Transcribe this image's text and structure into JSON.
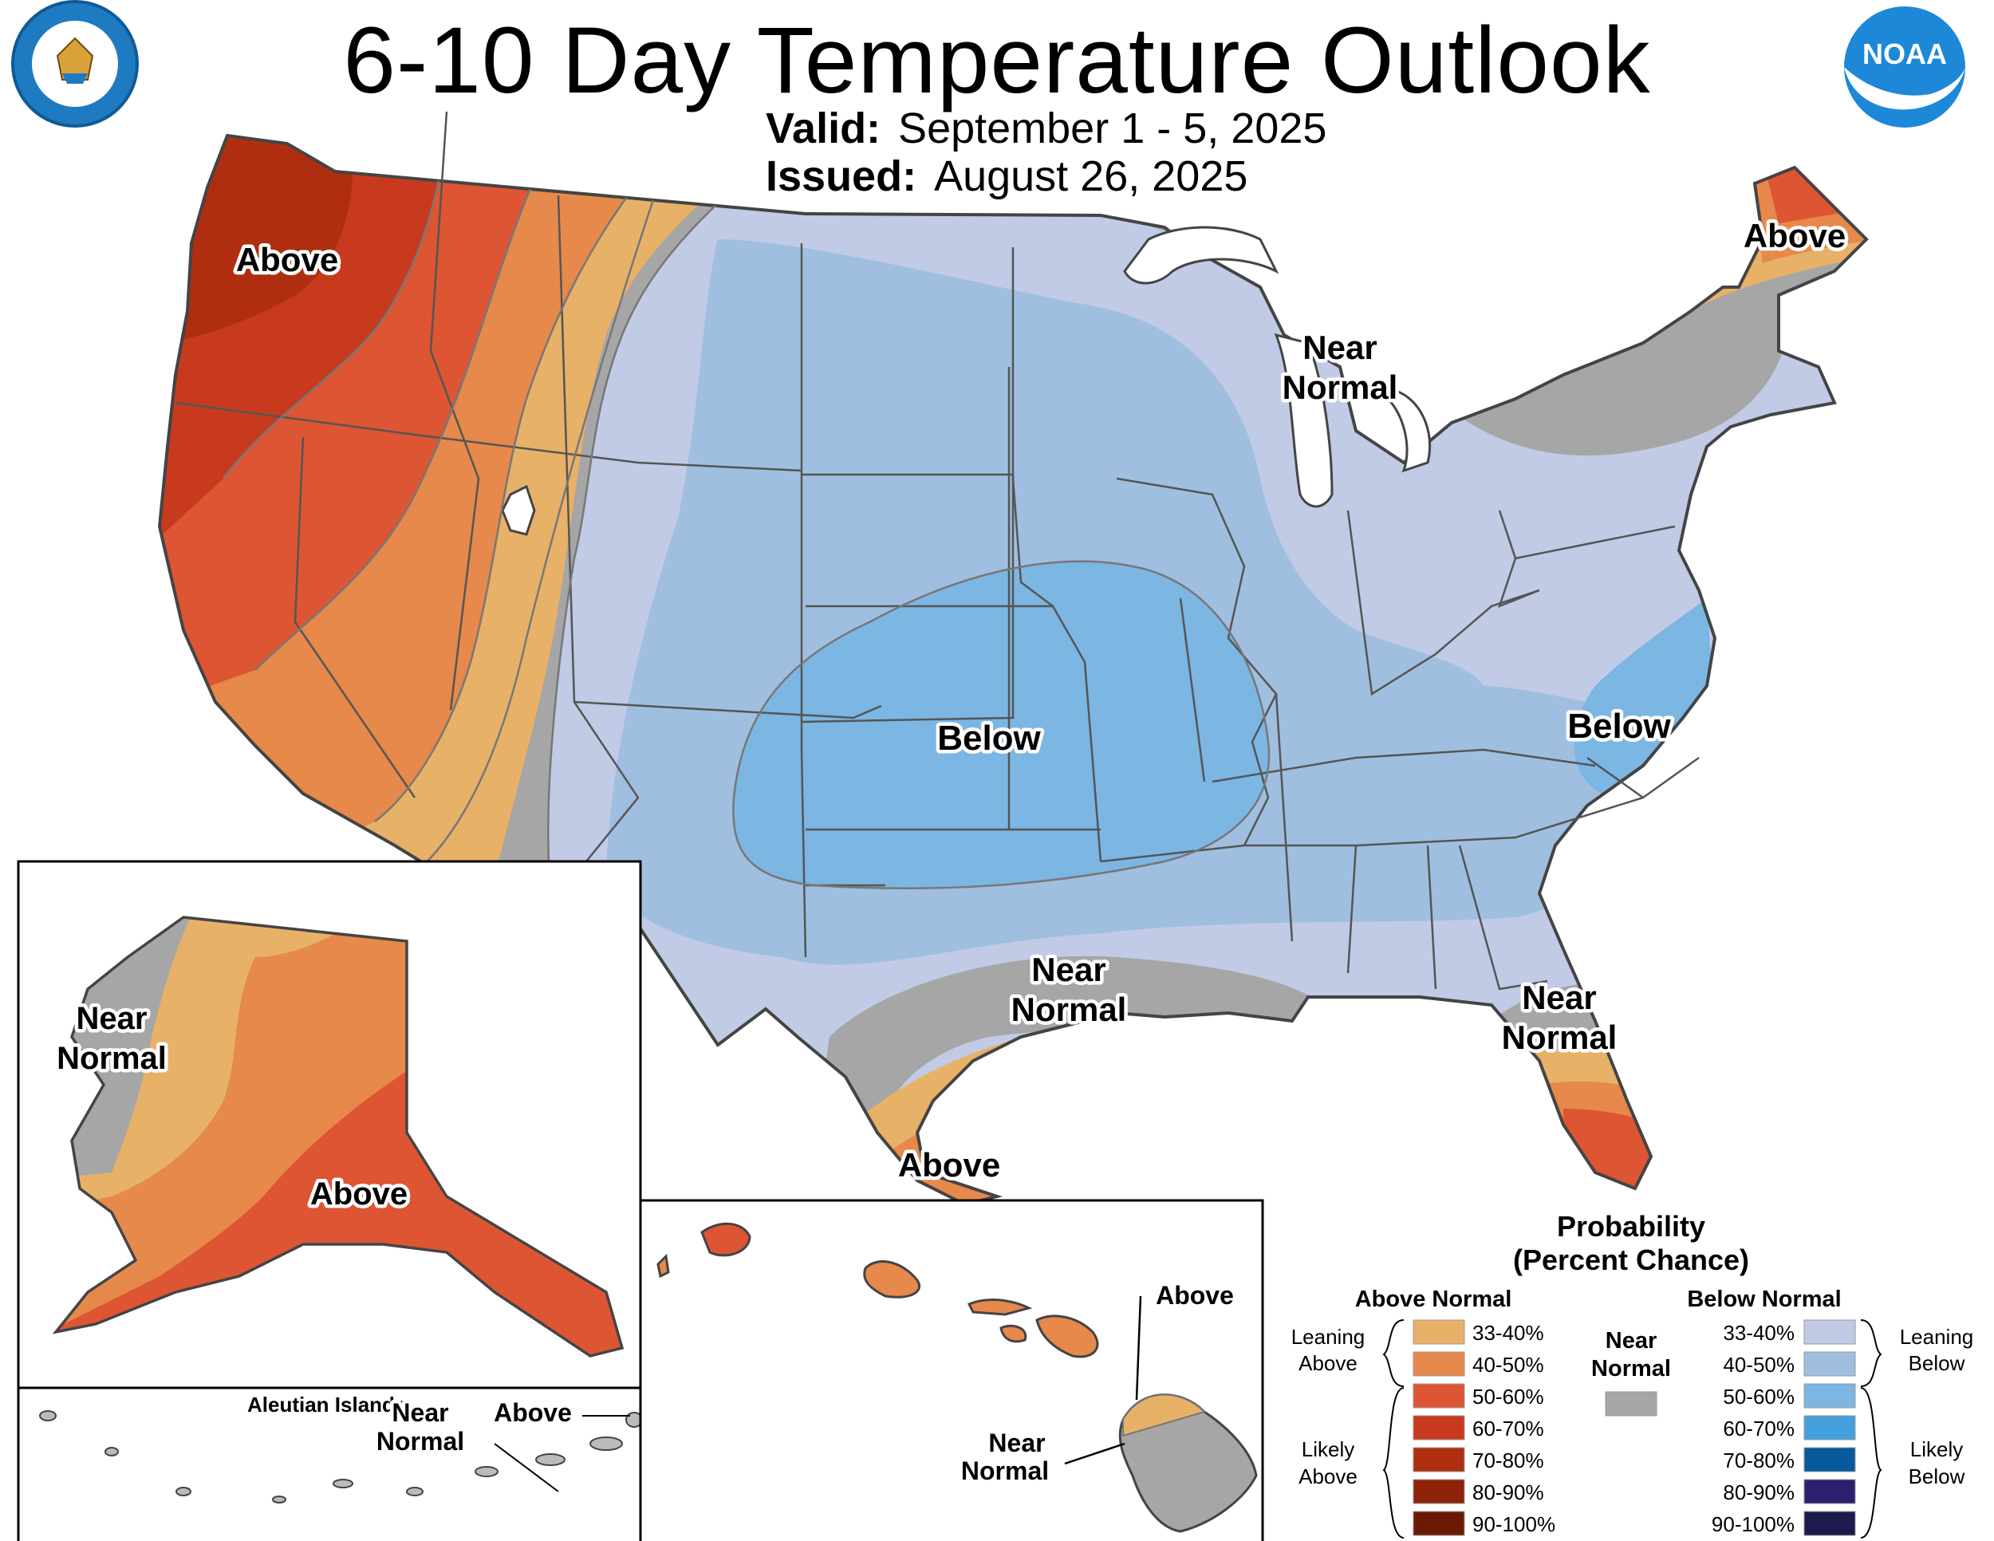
{
  "header": {
    "title": "6-10 Day Temperature Outlook",
    "valid_label": "Valid:",
    "valid_value": "September 1 - 5, 2025",
    "issued_label": "Issued:",
    "issued_value": "August 26, 2025"
  },
  "logos": {
    "commerce_seal_text": "DEPARTMENT OF COMMERCE · UNITED STATES OF AMERICA",
    "noaa_text": "NOAA"
  },
  "map_labels": {
    "northwest": "Above",
    "maine": "Above",
    "great_lakes_line1": "Near",
    "great_lakes_line2": "Normal",
    "central": "Below",
    "carolinas": "Below",
    "gulf_line1": "Near",
    "gulf_line2": "Normal",
    "florida_line1": "Near",
    "florida_line2": "Normal",
    "south_texas": "Above",
    "alaska_west_line1": "Near",
    "alaska_west_line2": "Normal",
    "alaska_south": "Above",
    "aleutian_title": "Aleutian Islands",
    "aleutian_near_line1": "Near",
    "aleutian_near_line2": "Normal",
    "aleutian_above": "Above",
    "hawaii_above": "Above",
    "hawaii_near_line1": "Near",
    "hawaii_near_line2": "Normal"
  },
  "legend": {
    "title_line1": "Probability",
    "title_line2": "(Percent Chance)",
    "above_header": "Above Normal",
    "below_header": "Below Normal",
    "near_line1": "Near",
    "near_line2": "Normal",
    "near_color": "#a6a6a6",
    "leaning_above_line1": "Leaning",
    "leaning_above_line2": "Above",
    "likely_above_line1": "Likely",
    "likely_above_line2": "Above",
    "leaning_below_line1": "Leaning",
    "leaning_below_line2": "Below",
    "likely_below_line1": "Likely",
    "likely_below_line2": "Below",
    "above": [
      {
        "range": "33-40%",
        "color": "#e8b168"
      },
      {
        "range": "40-50%",
        "color": "#e6894a"
      },
      {
        "range": "50-60%",
        "color": "#de5534"
      },
      {
        "range": "60-70%",
        "color": "#c73a1e"
      },
      {
        "range": "70-80%",
        "color": "#b02e10"
      },
      {
        "range": "80-90%",
        "color": "#8e2208"
      },
      {
        "range": "90-100%",
        "color": "#6a1a04"
      }
    ],
    "below": [
      {
        "range": "33-40%",
        "color": "#c1cbe6"
      },
      {
        "range": "40-50%",
        "color": "#a0bfe0"
      },
      {
        "range": "50-60%",
        "color": "#7cb6e3"
      },
      {
        "range": "60-70%",
        "color": "#44a0dc"
      },
      {
        "range": "70-80%",
        "color": "#08599c"
      },
      {
        "range": "80-90%",
        "color": "#2b2070"
      },
      {
        "range": "90-100%",
        "color": "#1d1a4c"
      }
    ]
  }
}
